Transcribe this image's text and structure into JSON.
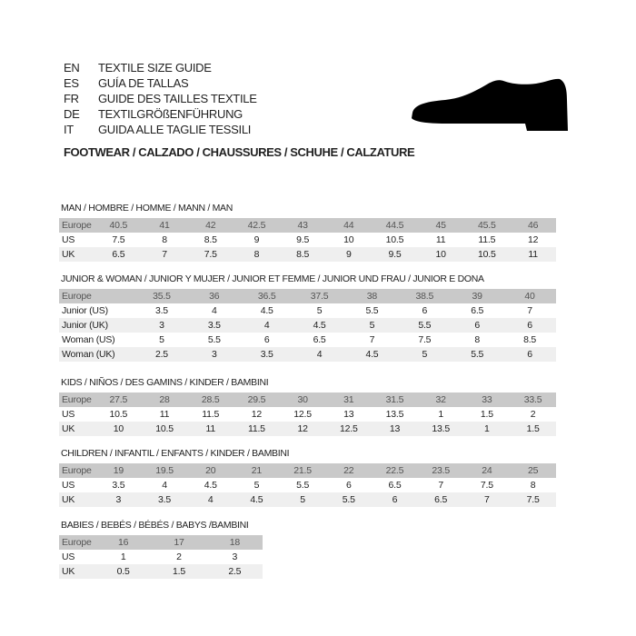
{
  "guide_titles": [
    {
      "code": "EN",
      "text": "TEXTILE SIZE GUIDE"
    },
    {
      "code": "ES",
      "text": "GUÍA DE TALLAS"
    },
    {
      "code": "FR",
      "text": "GUIDE DES TAILLES TEXTILE"
    },
    {
      "code": "DE",
      "text": "TEXTILGRÖßENFÜHRUNG"
    },
    {
      "code": "IT",
      "text": "GUIDA ALLE TAGLIE TESSILI"
    }
  ],
  "footwear_heading": "FOOTWEAR / CALZADO / CHAUSSURES / SCHUHE / CALZATURE",
  "shoe_icon": "shoe-silhouette-icon",
  "colors": {
    "header_row": "#c9c9c9",
    "alt_row": "#efefef"
  },
  "sections": [
    {
      "title": "MAN / HOMBRE / HOMME / MANN / MAN",
      "rows": [
        {
          "label": "Europe",
          "values": [
            "40.5",
            "41",
            "42",
            "42.5",
            "43",
            "44",
            "44.5",
            "45",
            "45.5",
            "46"
          ]
        },
        {
          "label": "US",
          "values": [
            "7.5",
            "8",
            "8.5",
            "9",
            "9.5",
            "10",
            "10.5",
            "11",
            "11.5",
            "12"
          ]
        },
        {
          "label": "UK",
          "values": [
            "6.5",
            "7",
            "7.5",
            "8",
            "8.5",
            "9",
            "9.5",
            "10",
            "10.5",
            "11"
          ]
        }
      ]
    },
    {
      "title": "JUNIOR & WOMAN / JUNIOR Y MUJER / JUNIOR ET FEMME / JUNIOR UND FRAU / JUNIOR E DONA",
      "rows": [
        {
          "label": "Europe",
          "values": [
            "35.5",
            "36",
            "36.5",
            "37.5",
            "38",
            "38.5",
            "39",
            "40"
          ]
        },
        {
          "label": "Junior (US)",
          "values": [
            "3.5",
            "4",
            "4.5",
            "5",
            "5.5",
            "6",
            "6.5",
            "7"
          ]
        },
        {
          "label": "Junior (UK)",
          "values": [
            "3",
            "3.5",
            "4",
            "4.5",
            "5",
            "5.5",
            "6",
            "6"
          ]
        },
        {
          "label": "Woman (US)",
          "values": [
            "5",
            "5.5",
            "6",
            "6.5",
            "7",
            "7.5",
            "8",
            "8.5"
          ]
        },
        {
          "label": "Woman (UK)",
          "values": [
            "2.5",
            "3",
            "3.5",
            "4",
            "4.5",
            "5",
            "5.5",
            "6"
          ]
        }
      ]
    },
    {
      "title": "KIDS / NIÑOS / DES GAMINS / KINDER / BAMBINI",
      "rows": [
        {
          "label": "Europe",
          "values": [
            "27.5",
            "28",
            "28.5",
            "29.5",
            "30",
            "31",
            "31.5",
            "32",
            "33",
            "33.5"
          ]
        },
        {
          "label": "US",
          "values": [
            "10.5",
            "11",
            "11.5",
            "12",
            "12.5",
            "13",
            "13.5",
            "1",
            "1.5",
            "2"
          ]
        },
        {
          "label": "UK",
          "values": [
            "10",
            "10.5",
            "11",
            "11.5",
            "12",
            "12.5",
            "13",
            "13.5",
            "1",
            "1.5"
          ]
        }
      ]
    },
    {
      "title": "CHILDREN / INFANTIL / ENFANTS / KINDER / BAMBINI",
      "rows": [
        {
          "label": "Europe",
          "values": [
            "19",
            "19.5",
            "20",
            "21",
            "21.5",
            "22",
            "22.5",
            "23.5",
            "24",
            "25"
          ]
        },
        {
          "label": "US",
          "values": [
            "3.5",
            "4",
            "4.5",
            "5",
            "5.5",
            "6",
            "6.5",
            "7",
            "7.5",
            "8"
          ]
        },
        {
          "label": "UK",
          "values": [
            "3",
            "3.5",
            "4",
            "4.5",
            "5",
            "5.5",
            "6",
            "6.5",
            "7",
            "7.5"
          ]
        }
      ]
    },
    {
      "title": "BABIES  / BEBÉS / BÉBÉS / BABYS /BAMBINI",
      "rows": [
        {
          "label": "Europe",
          "values": [
            "16",
            "17",
            "18"
          ]
        },
        {
          "label": "US",
          "values": [
            "1",
            "2",
            "3"
          ]
        },
        {
          "label": "UK",
          "values": [
            "0.5",
            "1.5",
            "2.5"
          ]
        }
      ]
    }
  ]
}
